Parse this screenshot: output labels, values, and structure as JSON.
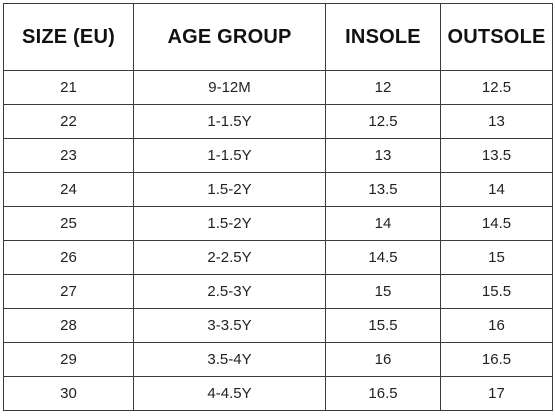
{
  "table": {
    "headers": [
      "SIZE (EU)",
      "AGE GROUP",
      "INSOLE",
      "OUTSOLE"
    ],
    "rows": [
      [
        "21",
        "9-12M",
        "12",
        "12.5"
      ],
      [
        "22",
        "1-1.5Y",
        "12.5",
        "13"
      ],
      [
        "23",
        "1-1.5Y",
        "13",
        "13.5"
      ],
      [
        "24",
        "1.5-2Y",
        "13.5",
        "14"
      ],
      [
        "25",
        "1.5-2Y",
        "14",
        "14.5"
      ],
      [
        "26",
        "2-2.5Y",
        "14.5",
        "15"
      ],
      [
        "27",
        "2.5-3Y",
        "15",
        "15.5"
      ],
      [
        "28",
        "3-3.5Y",
        "15.5",
        "16"
      ],
      [
        "29",
        "3.5-4Y",
        "16",
        "16.5"
      ],
      [
        "30",
        "4-4.5Y",
        "16.5",
        "17"
      ]
    ]
  }
}
